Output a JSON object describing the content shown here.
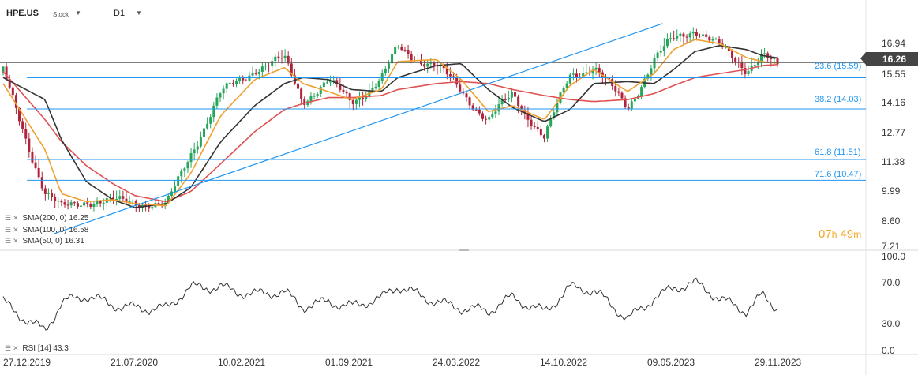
{
  "header": {
    "symbol": "HPE.US",
    "instrument_type": "Stock",
    "timeframe": "D1"
  },
  "price_axis": {
    "ticks": [
      "16.94",
      "15.55",
      "14.16",
      "12.77",
      "11.38",
      "9.99",
      "8.60",
      "7.21"
    ],
    "current_price": "16.26"
  },
  "rsi_axis": {
    "ticks": [
      "100.0",
      "70.0",
      "30.0",
      "0.0"
    ]
  },
  "date_axis": {
    "ticks": [
      "27.12.2019",
      "21.07.2020",
      "10.02.2021",
      "01.09.2021",
      "24.03.2022",
      "14.10.2022",
      "09.05.2023",
      "29.11.2023"
    ]
  },
  "fib_labels": [
    "23.6 (15.59)",
    "38.2 (14.03)",
    "61.8 (11.51)",
    "71.6 (10.47)"
  ],
  "legend": {
    "sma200": "SMA(200, 0) 16.25",
    "sma100": "SMA(100, 0) 16.58",
    "sma50": "SMA(50, 0) 16.31",
    "rsi": "RSI [14] 43.3"
  },
  "countdown": {
    "hours": "07",
    "h_unit": "h",
    "minutes": "49",
    "m_unit": "m"
  },
  "colors": {
    "up_candle": "#26a65b",
    "down_candle": "#b0243b",
    "sma200": "#e05252",
    "sma100": "#333333",
    "sma50": "#f0a030",
    "fib_line": "#2196f3",
    "rsi_line": "#333333",
    "countdown": "#f5a623"
  },
  "chart_data": {
    "type": "candlestick",
    "title": "HPE.US",
    "timeframe": "D1",
    "x": [
      "2019-12-27",
      "2020-03-15",
      "2020-04-15",
      "2020-06-01",
      "2020-07-21",
      "2020-09-01",
      "2020-10-30",
      "2020-12-15",
      "2021-02-10",
      "2021-04-15",
      "2021-06-10",
      "2021-07-15",
      "2021-09-01",
      "2021-10-15",
      "2021-12-10",
      "2022-01-10",
      "2022-03-24",
      "2022-05-10",
      "2022-06-30",
      "2022-08-15",
      "2022-10-14",
      "2022-12-01",
      "2023-01-15",
      "2023-03-20",
      "2023-05-09",
      "2023-06-15",
      "2023-07-25",
      "2023-09-10",
      "2023-10-30",
      "2023-11-29",
      "2023-12-28"
    ],
    "close": [
      15.8,
      10.0,
      9.2,
      9.6,
      9.3,
      9.3,
      9.0,
      11.8,
      14.9,
      16.2,
      16.5,
      14.4,
      15.2,
      14.3,
      15.5,
      17.2,
      16.3,
      15.0,
      13.3,
      14.6,
      12.5,
      15.8,
      16.3,
      14.2,
      16.4,
      17.4,
      17.9,
      17.0,
      16.1,
      16.9,
      16.26
    ],
    "ylim": [
      7.21,
      18.33
    ],
    "y_ticks": [
      16.94,
      15.55,
      14.16,
      12.77,
      11.38,
      9.99,
      8.6,
      7.21
    ],
    "last_price": 16.26,
    "horizontal_lines": [
      {
        "label": "23.6 (15.59)",
        "value": 15.59
      },
      {
        "label": "38.2 (14.03)",
        "value": 14.03
      },
      {
        "label": "61.8 (11.51)",
        "value": 11.51
      },
      {
        "label": "71.6 (10.47)",
        "value": 10.47
      }
    ],
    "trendline": {
      "from": [
        "2020-04-01",
        7.8
      ],
      "to": [
        "2023-05-25",
        18.3
      ]
    },
    "series": [
      {
        "name": "SMA(200, 0)",
        "last": 16.25,
        "values": [
          15.9,
          13.5,
          12.4,
          11.2,
          10.3,
          9.7,
          9.4,
          9.9,
          11.3,
          12.9,
          14.0,
          14.3,
          14.6,
          14.6,
          14.7,
          15.0,
          15.3,
          15.4,
          15.3,
          15.0,
          14.7,
          14.5,
          14.4,
          14.5,
          14.8,
          15.2,
          15.6,
          15.8,
          16.0,
          16.2,
          16.25
        ]
      },
      {
        "name": "SMA(100, 0)",
        "last": 16.58,
        "values": [
          15.6,
          14.5,
          12.5,
          10.4,
          9.5,
          9.1,
          9.3,
          10.1,
          12.4,
          14.2,
          15.3,
          15.6,
          15.5,
          15.0,
          14.9,
          15.6,
          16.2,
          16.3,
          15.0,
          14.1,
          13.4,
          14.0,
          15.3,
          15.4,
          15.3,
          16.0,
          16.9,
          17.2,
          17.0,
          16.7,
          16.58
        ]
      },
      {
        "name": "SMA(50, 0)",
        "last": 16.31,
        "values": [
          15.3,
          12.0,
          9.8,
          9.4,
          9.5,
          9.3,
          9.2,
          10.8,
          13.7,
          15.5,
          16.1,
          15.3,
          14.9,
          14.5,
          15.0,
          16.4,
          16.5,
          15.5,
          13.9,
          14.2,
          13.5,
          15.2,
          16.0,
          14.9,
          15.8,
          17.0,
          17.5,
          17.3,
          16.6,
          16.4,
          16.31
        ]
      }
    ],
    "indicator": {
      "name": "RSI [14]",
      "last": 43.3,
      "ylim": [
        0,
        100
      ],
      "y_ticks": [
        100,
        70,
        30,
        0
      ],
      "values": [
        52,
        22,
        48,
        55,
        50,
        48,
        42,
        64,
        70,
        60,
        58,
        45,
        55,
        48,
        52,
        66,
        55,
        45,
        38,
        56,
        44,
        66,
        60,
        35,
        58,
        65,
        68,
        55,
        45,
        60,
        43.3
      ]
    }
  }
}
